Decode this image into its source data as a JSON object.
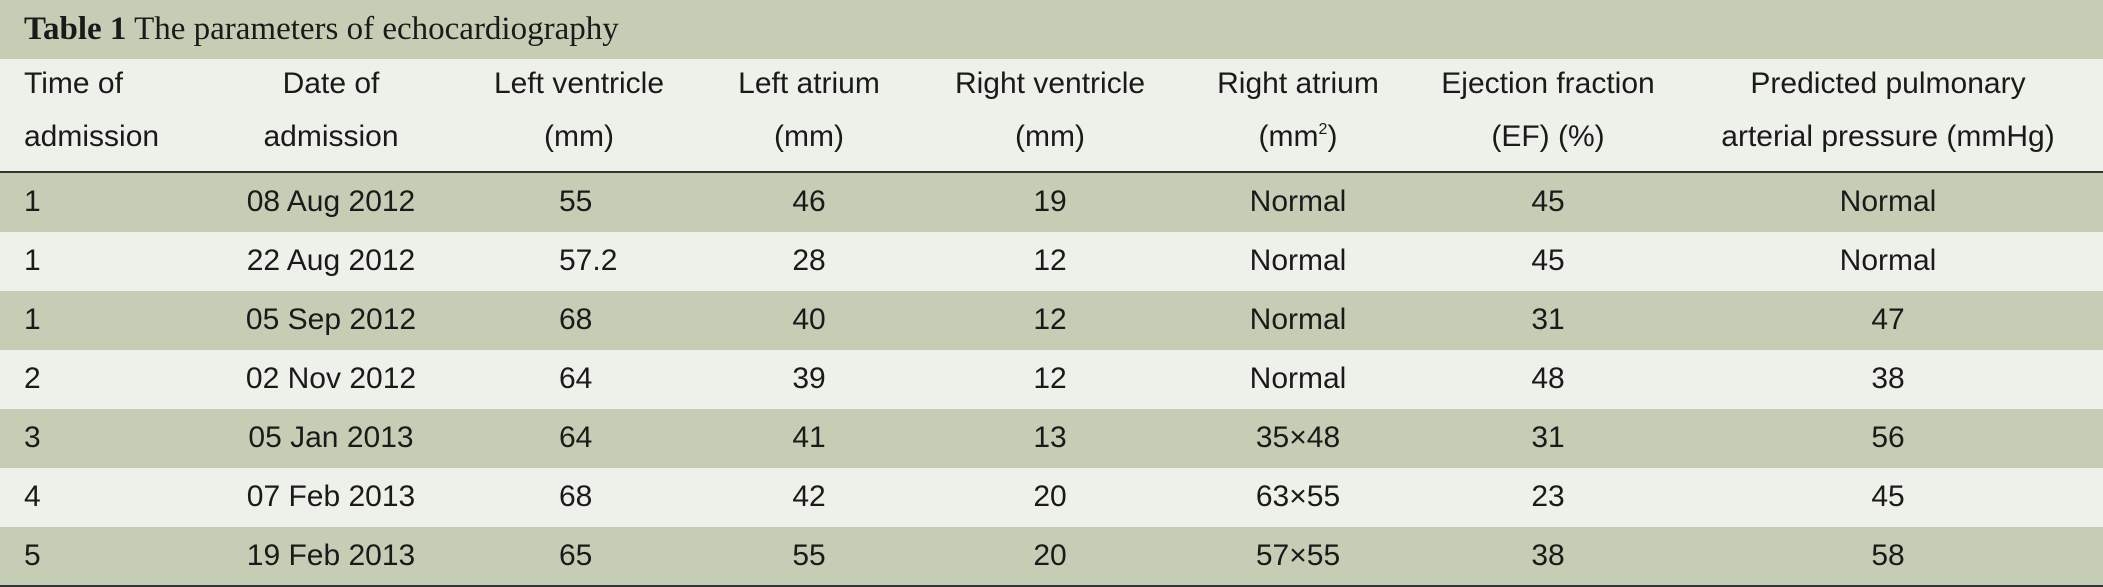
{
  "table": {
    "title_label": "Table 1",
    "title": "The parameters of echocardiography",
    "header": [
      {
        "lines": [
          "Time of",
          "admission"
        ]
      },
      {
        "lines": [
          "Date of",
          "admission"
        ]
      },
      {
        "lines": [
          "Left ventricle",
          "(mm)"
        ]
      },
      {
        "lines": [
          "Left atrium",
          "(mm)"
        ]
      },
      {
        "lines": [
          "Right ventricle",
          "(mm)"
        ]
      },
      {
        "lines": [
          "Right atrium",
          "(mm"
        ],
        "sup": "2",
        "tail": ")"
      },
      {
        "lines": [
          "Ejection fraction",
          "(EF) (%)"
        ]
      },
      {
        "lines": [
          "Predicted pulmonary",
          "arterial pressure (mmHg)"
        ]
      }
    ],
    "rows": [
      [
        "1",
        "08 Aug 2012",
        "55",
        "46",
        "19",
        "Normal",
        "45",
        "Normal"
      ],
      [
        "1",
        "22 Aug 2012",
        "57.2",
        "28",
        "12",
        "Normal",
        "45",
        "Normal"
      ],
      [
        "1",
        "05 Sep 2012",
        "68",
        "40",
        "12",
        "Normal",
        "31",
        "47"
      ],
      [
        "2",
        "02 Nov 2012",
        "64",
        "39",
        "12",
        "Normal",
        "48",
        "38"
      ],
      [
        "3",
        "05 Jan 2013",
        "64",
        "41",
        "13",
        "35×48",
        "31",
        "56"
      ],
      [
        "4",
        "07 Feb 2013",
        "68",
        "42",
        "20",
        "63×55",
        "23",
        "45"
      ],
      [
        "5",
        "19 Feb 2013",
        "65",
        "55",
        "20",
        "57×55",
        "38",
        "58"
      ]
    ]
  }
}
